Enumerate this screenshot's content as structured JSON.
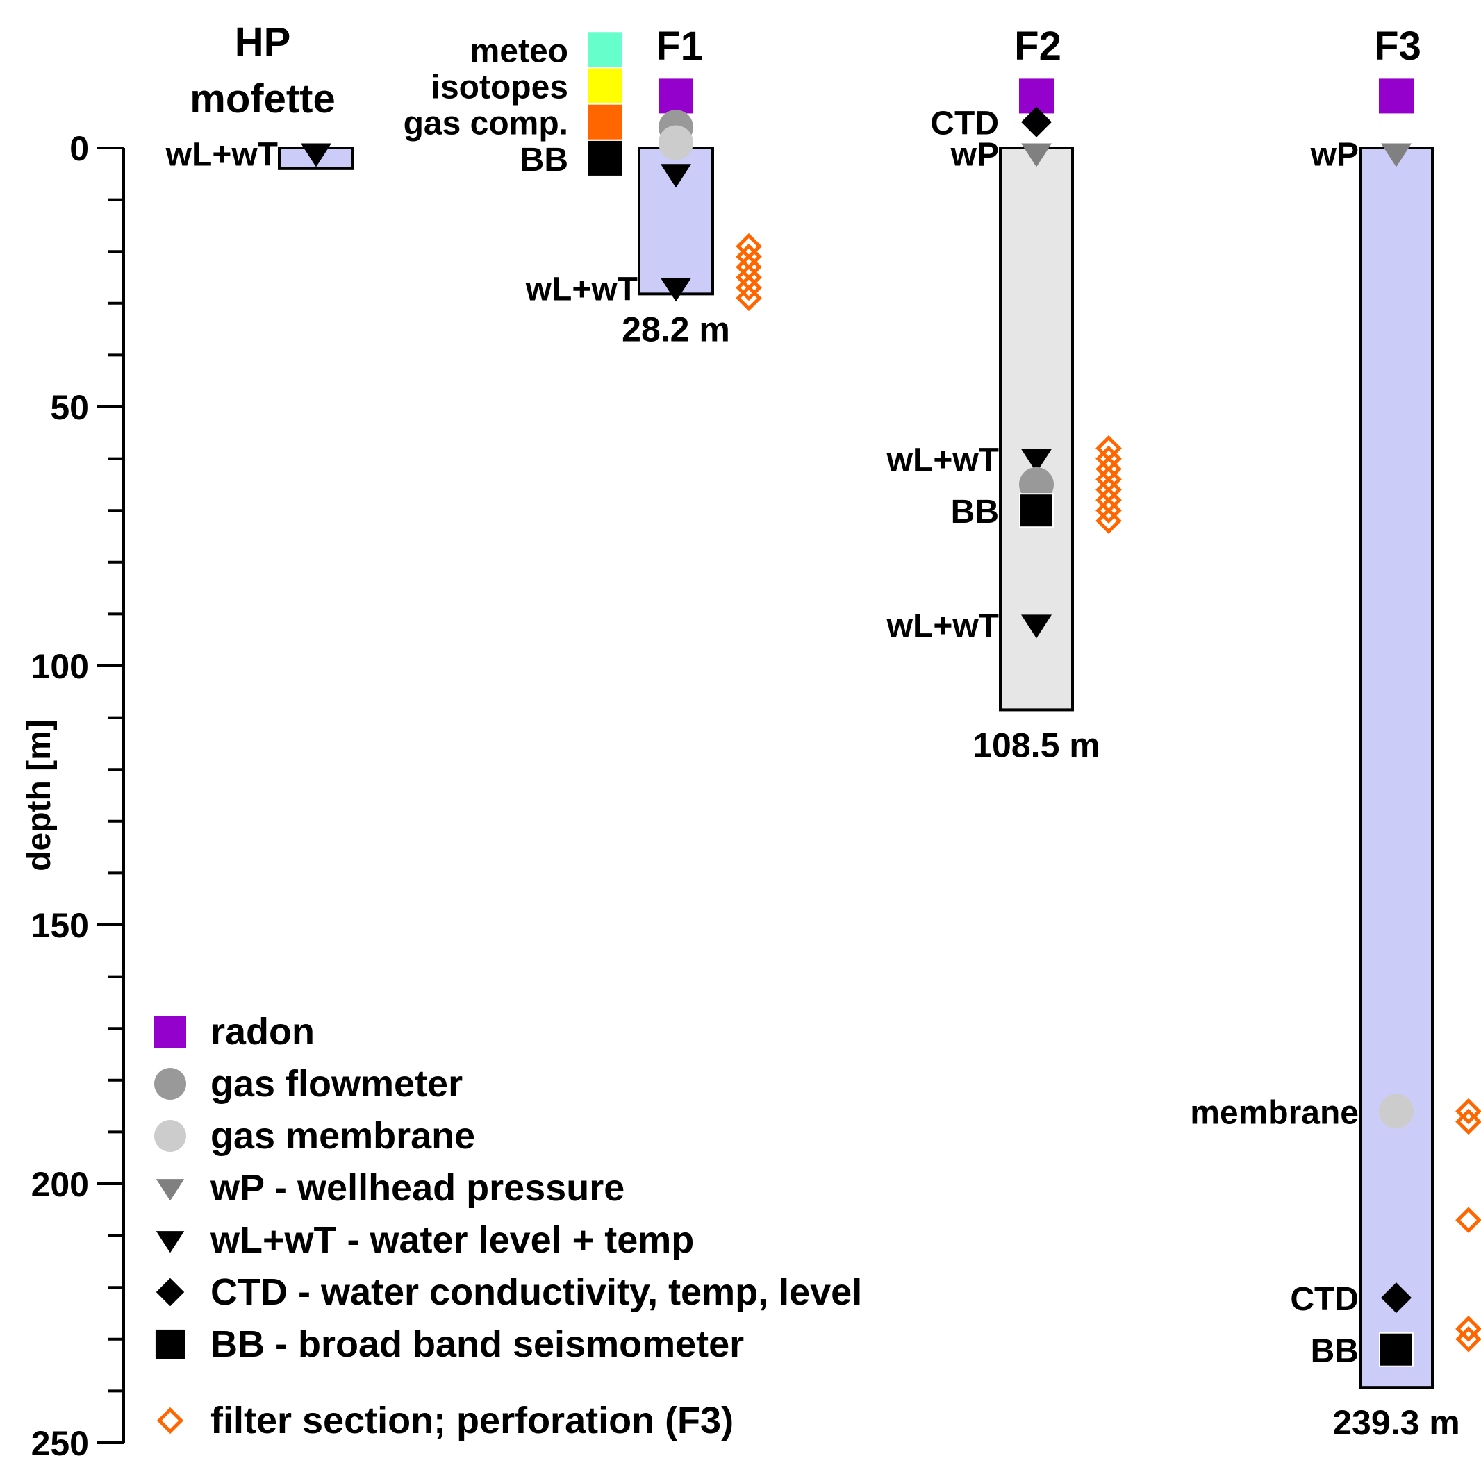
{
  "colors": {
    "well_fill": "#ccccf8",
    "well_f2_fill": "#e6e6e6",
    "radon": "#9400cc",
    "meteo": "#66ffcc",
    "isotopes": "#ffff00",
    "gas_comp": "#ff6600",
    "gas_flowmeter": "#999999",
    "gas_membrane": "#cccccc",
    "wellhead_pressure": "#808080",
    "black": "#000000",
    "filter": "#ff6600"
  },
  "chart_data": {
    "type": "well-schematic",
    "ylabel": "depth [m]",
    "ylim": [
      0,
      250
    ],
    "yticks": [
      "0",
      "50",
      "100",
      "150",
      "200",
      "250"
    ],
    "wells": [
      {
        "id": "HP",
        "title_lines": [
          "HP",
          "mofette"
        ],
        "bottom_depth_m": 4,
        "depth_label": "",
        "fill": "well_fill",
        "sensors": [
          {
            "type": "wLwT",
            "depth_m": 1,
            "label": "wL+wT"
          }
        ],
        "filters": []
      },
      {
        "id": "F1",
        "title_lines": [
          "F1"
        ],
        "bottom_depth_m": 28.2,
        "depth_label": "28.2 m",
        "fill": "well_fill",
        "surface": [
          {
            "type": "radon",
            "level": -10
          }
        ],
        "surface_labels": [
          {
            "text": "meteo",
            "color": "meteo",
            "level": -19
          },
          {
            "text": "isotopes",
            "color": "isotopes",
            "level": -12
          },
          {
            "text": "gas comp.",
            "color": "gas_comp",
            "level": -5
          },
          {
            "text": "BB",
            "color": "black",
            "level": 2
          }
        ],
        "sensors": [
          {
            "type": "gas_flowmeter",
            "depth_m": -4,
            "label": ""
          },
          {
            "type": "gas_membrane",
            "depth_m": -1,
            "label": ""
          },
          {
            "type": "wLwT",
            "depth_m": 5,
            "label": ""
          },
          {
            "type": "wLwT",
            "depth_m": 27,
            "label": "wL+wT"
          }
        ],
        "filters": [
          [
            19,
            30
          ]
        ]
      },
      {
        "id": "F2",
        "title_lines": [
          "F2"
        ],
        "bottom_depth_m": 108.5,
        "depth_label": "108.5 m",
        "fill": "well_f2_fill",
        "surface": [
          {
            "type": "radon",
            "level": -10
          }
        ],
        "sensors": [
          {
            "type": "CTD",
            "depth_m": -5,
            "label": "CTD"
          },
          {
            "type": "wP",
            "depth_m": 1,
            "label": "wP"
          },
          {
            "type": "wLwT",
            "depth_m": 60,
            "label": "wL+wT"
          },
          {
            "type": "gas_flowmeter",
            "depth_m": 65,
            "label": ""
          },
          {
            "type": "BB",
            "depth_m": 70,
            "label": "BB"
          },
          {
            "type": "wLwT",
            "depth_m": 92,
            "label": "wL+wT"
          }
        ],
        "filters": [
          [
            58,
            72
          ]
        ]
      },
      {
        "id": "F3",
        "title_lines": [
          "F3"
        ],
        "bottom_depth_m": 239.3,
        "depth_label": "239.3 m",
        "fill": "well_fill",
        "surface": [
          {
            "type": "radon",
            "level": -10
          }
        ],
        "sensors": [
          {
            "type": "wP",
            "depth_m": 1,
            "label": "wP"
          },
          {
            "type": "gas_membrane",
            "depth_m": 186,
            "label": "membrane"
          },
          {
            "type": "CTD",
            "depth_m": 222,
            "label": "CTD"
          },
          {
            "type": "BB",
            "depth_m": 232,
            "label": "BB"
          }
        ],
        "filters": [
          [
            186,
            189
          ],
          [
            207,
            208
          ],
          [
            228,
            231
          ]
        ]
      }
    ],
    "legend": [
      {
        "symbol": "radon",
        "label": "radon"
      },
      {
        "symbol": "gas_flowmeter",
        "label": "gas flowmeter"
      },
      {
        "symbol": "gas_membrane",
        "label": "gas membrane"
      },
      {
        "symbol": "wP",
        "label": "wP - wellhead pressure"
      },
      {
        "symbol": "wLwT",
        "label": "wL+wT - water level + temp"
      },
      {
        "symbol": "CTD",
        "label": "CTD - water conductivity, temp, level"
      },
      {
        "symbol": "BB",
        "label": "BB - broad band seismometer"
      },
      {
        "symbol": "filter",
        "label": "filter section; perforation (F3)"
      }
    ]
  }
}
